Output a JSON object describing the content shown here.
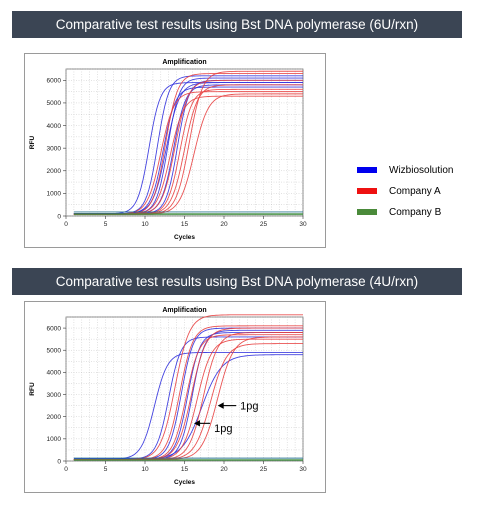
{
  "banners": {
    "top": "Comparative test results using Bst DNA polymerase (6U/rxn)",
    "bottom": "Comparative test results using Bst DNA polymerase (4U/rxn)"
  },
  "legend": {
    "items": [
      {
        "label": "Wizbiosolution",
        "color": "#0000ee"
      },
      {
        "label": "Company A",
        "color": "#ee1111"
      },
      {
        "label": "Company B",
        "color": "#4a8a3a"
      }
    ]
  },
  "chart_data": [
    {
      "type": "line",
      "title": "Amplification",
      "xlabel": "Cycles",
      "ylabel": "RFU",
      "xlim": [
        0,
        30
      ],
      "ylim": [
        0,
        6500
      ],
      "xticks": [
        0,
        5,
        10,
        15,
        20,
        25,
        30
      ],
      "yticks": [
        0,
        1000,
        2000,
        3000,
        4000,
        5000,
        6000
      ],
      "grid": true,
      "annotations": [],
      "series": [
        {
          "group": "Wizbiosolution",
          "color": "#3030dd",
          "base": 100,
          "plateau": 5900,
          "midpoint": 10.5,
          "slope": 1.4
        },
        {
          "group": "Wizbiosolution",
          "color": "#3030dd",
          "base": 100,
          "plateau": 6200,
          "midpoint": 11.6,
          "slope": 1.4
        },
        {
          "group": "Wizbiosolution",
          "color": "#3030dd",
          "base": 100,
          "plateau": 5700,
          "midpoint": 12.3,
          "slope": 1.3
        },
        {
          "group": "Wizbiosolution",
          "color": "#3030dd",
          "base": 100,
          "plateau": 6100,
          "midpoint": 12.9,
          "slope": 1.4
        },
        {
          "group": "Wizbiosolution",
          "color": "#3030dd",
          "base": 100,
          "plateau": 5800,
          "midpoint": 13.6,
          "slope": 1.3
        },
        {
          "group": "Wizbiosolution",
          "color": "#3030dd",
          "base": 100,
          "plateau": 6000,
          "midpoint": 14.1,
          "slope": 1.4
        },
        {
          "group": "Wizbiosolution",
          "color": "#3030dd",
          "base": 100,
          "plateau": 5900,
          "midpoint": 12.7,
          "slope": 1.2
        },
        {
          "group": "Company A",
          "color": "#e84040",
          "base": 80,
          "plateau": 5500,
          "midpoint": 12.0,
          "slope": 1.2
        },
        {
          "group": "Company A",
          "color": "#e84040",
          "base": 80,
          "plateau": 6300,
          "midpoint": 12.6,
          "slope": 1.3
        },
        {
          "group": "Company A",
          "color": "#e84040",
          "base": 80,
          "plateau": 5300,
          "midpoint": 13.2,
          "slope": 1.2
        },
        {
          "group": "Company A",
          "color": "#e84040",
          "base": 80,
          "plateau": 6000,
          "midpoint": 13.8,
          "slope": 1.2
        },
        {
          "group": "Company A",
          "color": "#e84040",
          "base": 80,
          "plateau": 5600,
          "midpoint": 14.4,
          "slope": 1.3
        },
        {
          "group": "Company A",
          "color": "#e84040",
          "base": 80,
          "plateau": 5800,
          "midpoint": 15.0,
          "slope": 1.2
        },
        {
          "group": "Company A",
          "color": "#e84040",
          "base": 80,
          "plateau": 6400,
          "midpoint": 15.6,
          "slope": 1.2
        },
        {
          "group": "Company A",
          "color": "#e84040",
          "base": 80,
          "plateau": 5400,
          "midpoint": 16.2,
          "slope": 1.1
        },
        {
          "group": "Company B",
          "color": "#3d8c3d",
          "base": 100,
          "plateau": 100,
          "midpoint": 30,
          "slope": 1
        },
        {
          "group": "Company B",
          "color": "#3d8c3d",
          "base": 60,
          "plateau": 60,
          "midpoint": 30,
          "slope": 1
        },
        {
          "group": "Company B",
          "color": "#1b6a8a",
          "base": 180,
          "plateau": 180,
          "midpoint": 30,
          "slope": 1
        }
      ]
    },
    {
      "type": "line",
      "title": "Amplification",
      "xlabel": "Cycles",
      "ylabel": "RFU",
      "xlim": [
        0,
        30
      ],
      "ylim": [
        0,
        6500
      ],
      "xticks": [
        0,
        5,
        10,
        15,
        20,
        25,
        30
      ],
      "yticks": [
        0,
        1000,
        2000,
        3000,
        4000,
        5000,
        6000
      ],
      "grid": true,
      "annotations": [
        {
          "text": "1pg",
          "x": 19.2,
          "y": 2500,
          "text_x": 22.3,
          "text_y": 2500
        },
        {
          "text": "1pg",
          "x": 16.2,
          "y": 1700,
          "text_x": 19.0,
          "text_y": 1500
        }
      ],
      "series": [
        {
          "group": "Wizbiosolution",
          "color": "#3030dd",
          "base": 80,
          "plateau": 4900,
          "midpoint": 11.2,
          "slope": 1.2
        },
        {
          "group": "Wizbiosolution",
          "color": "#3030dd",
          "base": 80,
          "plateau": 5600,
          "midpoint": 13.0,
          "slope": 1.3
        },
        {
          "group": "Wizbiosolution",
          "color": "#3030dd",
          "base": 80,
          "plateau": 6000,
          "midpoint": 14.6,
          "slope": 1.3
        },
        {
          "group": "Wizbiosolution",
          "color": "#3030dd",
          "base": 80,
          "plateau": 5800,
          "midpoint": 15.4,
          "slope": 1.3
        },
        {
          "group": "Wizbiosolution",
          "color": "#3030dd",
          "base": 80,
          "plateau": 5900,
          "midpoint": 16.0,
          "slope": 1.3
        },
        {
          "group": "Wizbiosolution",
          "color": "#3030dd",
          "base": 80,
          "plateau": 4800,
          "midpoint": 17.2,
          "slope": 0.8
        },
        {
          "group": "Company A",
          "color": "#e84040",
          "base": 60,
          "plateau": 6600,
          "midpoint": 13.8,
          "slope": 1.1
        },
        {
          "group": "Company A",
          "color": "#e84040",
          "base": 60,
          "plateau": 6100,
          "midpoint": 14.4,
          "slope": 1.2
        },
        {
          "group": "Company A",
          "color": "#e84040",
          "base": 60,
          "plateau": 5700,
          "midpoint": 15.2,
          "slope": 1.2
        },
        {
          "group": "Company A",
          "color": "#e84040",
          "base": 60,
          "plateau": 6000,
          "midpoint": 15.9,
          "slope": 1.1
        },
        {
          "group": "Company A",
          "color": "#e84040",
          "base": 60,
          "plateau": 5500,
          "midpoint": 16.6,
          "slope": 1.1
        },
        {
          "group": "Company A",
          "color": "#e84040",
          "base": 60,
          "plateau": 5800,
          "midpoint": 17.4,
          "slope": 1.1
        },
        {
          "group": "Company A",
          "color": "#e84040",
          "base": 60,
          "plateau": 5300,
          "midpoint": 18.3,
          "slope": 1.0
        },
        {
          "group": "Company A",
          "color": "#e84040",
          "base": 60,
          "plateau": 5600,
          "midpoint": 19.2,
          "slope": 1.0
        },
        {
          "group": "Company B",
          "color": "#3d8c3d",
          "base": 60,
          "plateau": 60,
          "midpoint": 30,
          "slope": 1
        },
        {
          "group": "Company B",
          "color": "#3d8c3d",
          "base": 30,
          "plateau": 30,
          "midpoint": 30,
          "slope": 1
        },
        {
          "group": "Company B",
          "color": "#1b6a8a",
          "base": 130,
          "plateau": 130,
          "midpoint": 30,
          "slope": 1
        }
      ]
    }
  ]
}
